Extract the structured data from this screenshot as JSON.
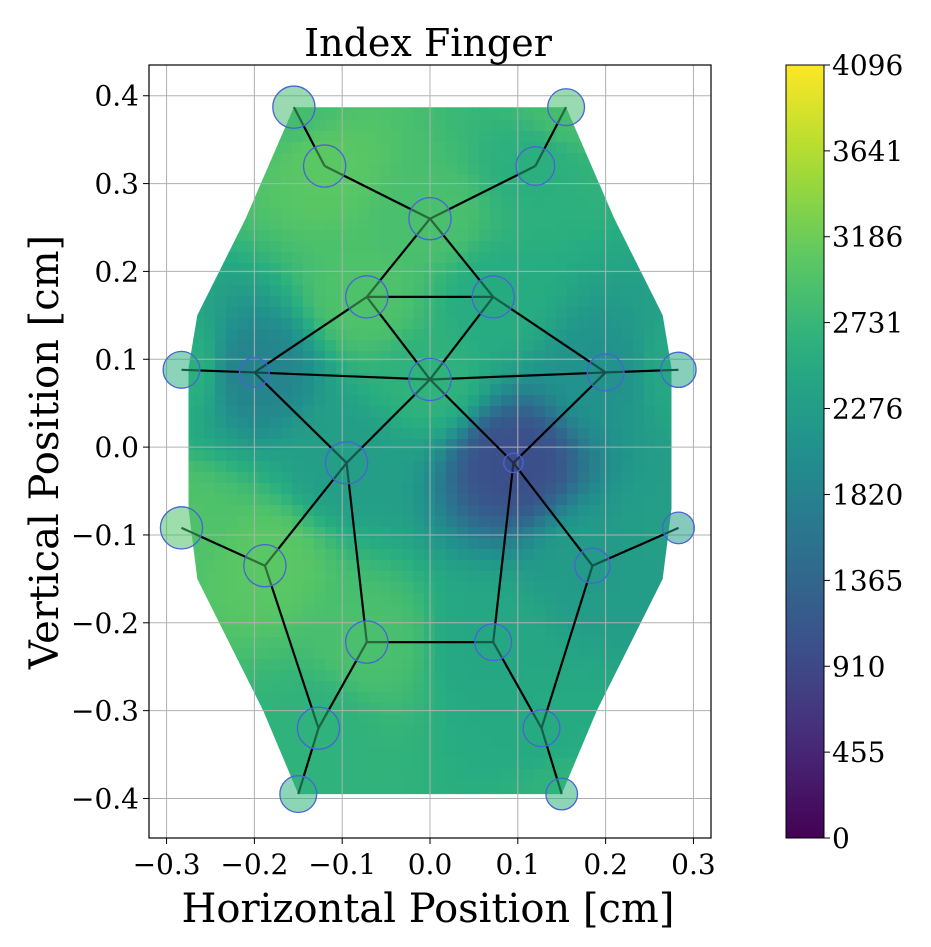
{
  "chart_data": {
    "type": "heatmap",
    "title": "Index Finger",
    "xlabel": "Horizontal Position [cm]",
    "ylabel": "Vertical Position [cm]",
    "xlim": [
      -0.32,
      0.32
    ],
    "ylim": [
      -0.445,
      0.435
    ],
    "x_ticks": [
      -0.3,
      -0.2,
      -0.1,
      0.0,
      0.1,
      0.2,
      0.3
    ],
    "x_tick_labels": [
      "−0.3",
      "−0.2",
      "−0.1",
      "0.0",
      "0.1",
      "0.2",
      "0.3"
    ],
    "y_ticks": [
      -0.4,
      -0.3,
      -0.2,
      -0.1,
      0.0,
      0.1,
      0.2,
      0.3,
      0.4
    ],
    "y_tick_labels": [
      "−0.4",
      "−0.3",
      "−0.2",
      "−0.1",
      "0.0",
      "0.1",
      "0.2",
      "0.3",
      "0.4"
    ],
    "grid": true,
    "colormap": "viridis",
    "colorbar": {
      "range": [
        0,
        4096
      ],
      "ticks": [
        0,
        455,
        910,
        1365,
        1820,
        2276,
        2731,
        3186,
        3641,
        4096
      ],
      "tick_labels": [
        "0",
        "455",
        "910",
        "1365",
        "1820",
        "2276",
        "2731",
        "3186",
        "3641",
        "4096"
      ]
    },
    "sensors": [
      {
        "x": -0.155,
        "y": 0.387,
        "value": 2850,
        "radius": 0.024
      },
      {
        "x": 0.155,
        "y": 0.387,
        "value": 2850,
        "radius": 0.021
      },
      {
        "x": -0.12,
        "y": 0.32,
        "value": 3050,
        "radius": 0.024
      },
      {
        "x": 0.12,
        "y": 0.32,
        "value": 2600,
        "radius": 0.022
      },
      {
        "x": 0.0,
        "y": 0.26,
        "value": 2900,
        "radius": 0.024
      },
      {
        "x": -0.072,
        "y": 0.171,
        "value": 2950,
        "radius": 0.024
      },
      {
        "x": 0.072,
        "y": 0.171,
        "value": 2550,
        "radius": 0.024
      },
      {
        "x": -0.283,
        "y": 0.088,
        "value": 2600,
        "radius": 0.021
      },
      {
        "x": -0.2,
        "y": 0.085,
        "value": 1850,
        "radius": 0.017
      },
      {
        "x": 0.0,
        "y": 0.077,
        "value": 2650,
        "radius": 0.024
      },
      {
        "x": 0.2,
        "y": 0.085,
        "value": 2100,
        "radius": 0.021
      },
      {
        "x": 0.283,
        "y": 0.088,
        "value": 2450,
        "radius": 0.02
      },
      {
        "x": -0.095,
        "y": -0.018,
        "value": 2300,
        "radius": 0.024
      },
      {
        "x": 0.095,
        "y": -0.018,
        "value": 1000,
        "radius": 0.011
      },
      {
        "x": -0.283,
        "y": -0.092,
        "value": 2950,
        "radius": 0.024
      },
      {
        "x": 0.283,
        "y": -0.092,
        "value": 2300,
        "radius": 0.018
      },
      {
        "x": -0.188,
        "y": -0.135,
        "value": 3050,
        "radius": 0.024
      },
      {
        "x": 0.185,
        "y": -0.135,
        "value": 2250,
        "radius": 0.02
      },
      {
        "x": -0.072,
        "y": -0.222,
        "value": 2900,
        "radius": 0.024
      },
      {
        "x": 0.072,
        "y": -0.222,
        "value": 2450,
        "radius": 0.021
      },
      {
        "x": -0.127,
        "y": -0.32,
        "value": 2650,
        "radius": 0.024
      },
      {
        "x": 0.127,
        "y": -0.32,
        "value": 2500,
        "radius": 0.021
      },
      {
        "x": -0.15,
        "y": -0.395,
        "value": 2650,
        "radius": 0.021
      },
      {
        "x": 0.15,
        "y": -0.395,
        "value": 2650,
        "radius": 0.018
      }
    ],
    "skeleton_edges": [
      [
        0,
        2
      ],
      [
        2,
        4
      ],
      [
        1,
        3
      ],
      [
        3,
        4
      ],
      [
        4,
        5
      ],
      [
        4,
        6
      ],
      [
        5,
        6
      ],
      [
        5,
        9
      ],
      [
        6,
        9
      ],
      [
        5,
        8
      ],
      [
        6,
        10
      ],
      [
        7,
        8
      ],
      [
        8,
        9
      ],
      [
        9,
        10
      ],
      [
        10,
        11
      ],
      [
        8,
        12
      ],
      [
        9,
        12
      ],
      [
        9,
        13
      ],
      [
        10,
        13
      ],
      [
        14,
        16
      ],
      [
        16,
        12
      ],
      [
        13,
        17
      ],
      [
        17,
        15
      ],
      [
        12,
        18
      ],
      [
        18,
        19
      ],
      [
        19,
        13
      ],
      [
        16,
        20
      ],
      [
        18,
        20
      ],
      [
        20,
        22
      ],
      [
        17,
        21
      ],
      [
        19,
        21
      ],
      [
        21,
        23
      ]
    ],
    "region_outline": [
      [
        -0.155,
        0.387
      ],
      [
        0.155,
        0.387
      ],
      [
        0.21,
        0.26
      ],
      [
        0.265,
        0.15
      ],
      [
        0.275,
        0.09
      ],
      [
        0.275,
        -0.07
      ],
      [
        0.265,
        -0.15
      ],
      [
        0.22,
        -0.24
      ],
      [
        0.19,
        -0.3
      ],
      [
        0.15,
        -0.395
      ],
      [
        -0.15,
        -0.395
      ],
      [
        -0.19,
        -0.3
      ],
      [
        -0.22,
        -0.24
      ],
      [
        -0.265,
        -0.15
      ],
      [
        -0.275,
        -0.07
      ],
      [
        -0.275,
        0.09
      ],
      [
        -0.265,
        0.15
      ],
      [
        -0.21,
        0.26
      ]
    ]
  }
}
